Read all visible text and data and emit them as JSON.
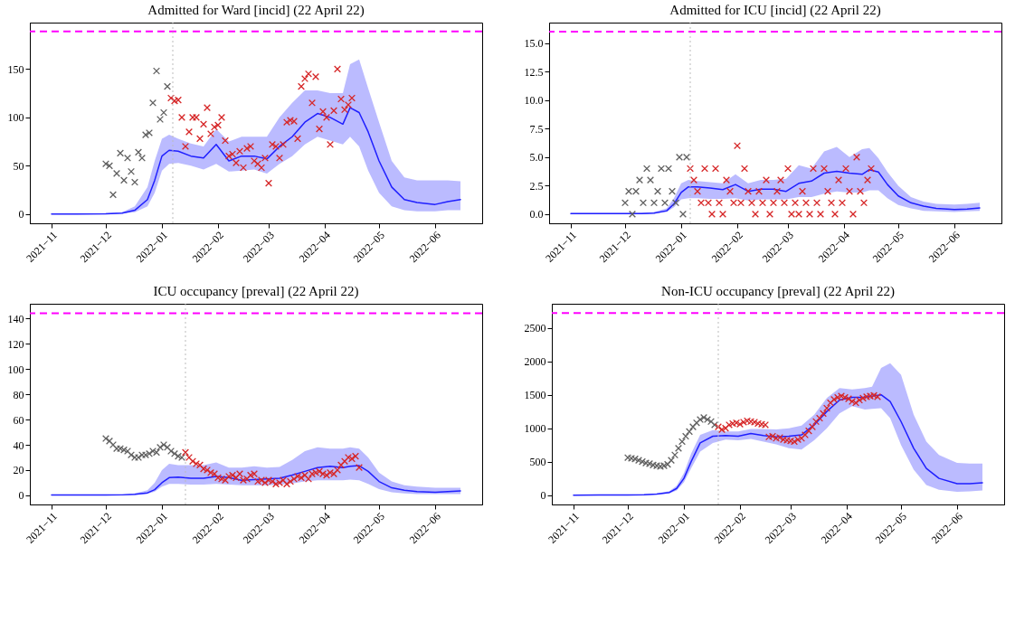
{
  "chart_data": [
    {
      "type": "scatter",
      "title": "Admitted for Ward [incid] (22 April 22)",
      "xlim": [
        "2021-10-20",
        "2022-06-27"
      ],
      "xticks": [
        {
          "value": "2021-11",
          "label": "2021−11"
        },
        {
          "value": "2021-12",
          "label": "2021−12"
        },
        {
          "value": "2022-01",
          "label": "2022−01"
        },
        {
          "value": "2022-02",
          "label": "2022−02"
        },
        {
          "value": "2022-03",
          "label": "2022−03"
        },
        {
          "value": "2022-04",
          "label": "2022−04"
        },
        {
          "value": "2022-05",
          "label": "2022−05"
        },
        {
          "value": "2022-06",
          "label": "2022−06"
        }
      ],
      "ylim": [
        -9.5,
        198
      ],
      "yticks": [
        0,
        50,
        100,
        150
      ],
      "ref_lines": [
        {
          "axis": "y",
          "value": 189,
          "color": "#ff00ff",
          "line_style": "dashed"
        },
        {
          "axis": "x",
          "value": "2022-01-07",
          "color": "#bbbbbb",
          "line_style": "dotted"
        }
      ],
      "series": [
        {
          "type": "scatter",
          "marker": "cross",
          "color": "#606060",
          "x": [
            "2021-12-01",
            "2021-12-03",
            "2021-12-05",
            "2021-12-07",
            "2021-12-09",
            "2021-12-11",
            "2021-12-13",
            "2021-12-15",
            "2021-12-17",
            "2021-12-19",
            "2021-12-21",
            "2021-12-23",
            "2021-12-25",
            "2021-12-27",
            "2021-12-29",
            "2021-12-31",
            "2022-01-02",
            "2022-01-04"
          ],
          "values": [
            52,
            50,
            20,
            42,
            63,
            35,
            58,
            44,
            33,
            64,
            58,
            82,
            84,
            115,
            148,
            98,
            105,
            132
          ]
        },
        {
          "type": "scatter",
          "marker": "cross",
          "color": "#d62728",
          "x": [
            "2022-01-06",
            "2022-01-08",
            "2022-01-10",
            "2022-01-12",
            "2022-01-14",
            "2022-01-16",
            "2022-01-18",
            "2022-01-20",
            "2022-01-22",
            "2022-01-24",
            "2022-01-26",
            "2022-01-28",
            "2022-01-30",
            "2022-02-01",
            "2022-02-03",
            "2022-02-05",
            "2022-02-07",
            "2022-02-09",
            "2022-02-11",
            "2022-02-13",
            "2022-02-15",
            "2022-02-17",
            "2022-02-19",
            "2022-02-21",
            "2022-02-23",
            "2022-02-25",
            "2022-02-27",
            "2022-03-01",
            "2022-03-03",
            "2022-03-05",
            "2022-03-07",
            "2022-03-09",
            "2022-03-11",
            "2022-03-13",
            "2022-03-15",
            "2022-03-17",
            "2022-03-19",
            "2022-03-21",
            "2022-03-23",
            "2022-03-25",
            "2022-03-27",
            "2022-03-29",
            "2022-03-31",
            "2022-04-02",
            "2022-04-04",
            "2022-04-06",
            "2022-04-08",
            "2022-04-10",
            "2022-04-12",
            "2022-04-14",
            "2022-04-16"
          ],
          "values": [
            120,
            117,
            118,
            100,
            70,
            85,
            100,
            100,
            78,
            93,
            110,
            83,
            90,
            92,
            100,
            76,
            60,
            62,
            53,
            65,
            48,
            68,
            70,
            55,
            52,
            48,
            58,
            32,
            72,
            70,
            58,
            72,
            95,
            97,
            96,
            78,
            132,
            140,
            145,
            115,
            142,
            88,
            106,
            100,
            72,
            107,
            150,
            119,
            108,
            113,
            120
          ]
        },
        {
          "type": "line",
          "color": "#1f1fff",
          "x": [
            "2021-11-01",
            "2021-11-15",
            "2021-12-01",
            "2021-12-10",
            "2021-12-17",
            "2021-12-24",
            "2021-12-28",
            "2022-01-01",
            "2022-01-05",
            "2022-01-10",
            "2022-01-17",
            "2022-01-24",
            "2022-01-31",
            "2022-02-07",
            "2022-02-14",
            "2022-02-21",
            "2022-02-28",
            "2022-03-07",
            "2022-03-14",
            "2022-03-21",
            "2022-03-28",
            "2022-04-04",
            "2022-04-11",
            "2022-04-15",
            "2022-04-20",
            "2022-04-25",
            "2022-05-01",
            "2022-05-08",
            "2022-05-15",
            "2022-05-22",
            "2022-06-01",
            "2022-06-08",
            "2022-06-15"
          ],
          "values": [
            0,
            0,
            0.3,
            1,
            4,
            15,
            35,
            60,
            66,
            65,
            60,
            58,
            72,
            55,
            60,
            60,
            57,
            70,
            80,
            95,
            104,
            100,
            93,
            110,
            105,
            85,
            55,
            28,
            15,
            12,
            10,
            13,
            15
          ],
          "lower": [
            0,
            0,
            0,
            0.5,
            2,
            8,
            22,
            45,
            52,
            53,
            50,
            46,
            52,
            44,
            45,
            46,
            42,
            52,
            60,
            72,
            80,
            76,
            72,
            80,
            70,
            45,
            22,
            8,
            4,
            3,
            3,
            4,
            4
          ],
          "upper": [
            0,
            0,
            1,
            2,
            8,
            28,
            55,
            78,
            82,
            78,
            73,
            70,
            88,
            75,
            80,
            80,
            80,
            100,
            115,
            128,
            128,
            125,
            125,
            155,
            160,
            130,
            95,
            55,
            38,
            35,
            35,
            35,
            34
          ]
        }
      ]
    },
    {
      "type": "scatter",
      "title": "Admitted for ICU [incid] (22 April 22)",
      "xlim": [
        "2021-10-20",
        "2022-06-27"
      ],
      "xticks": [
        {
          "value": "2021-11",
          "label": "2021−11"
        },
        {
          "value": "2021-12",
          "label": "2021−12"
        },
        {
          "value": "2022-01",
          "label": "2022−01"
        },
        {
          "value": "2022-02",
          "label": "2022−02"
        },
        {
          "value": "2022-03",
          "label": "2022−03"
        },
        {
          "value": "2022-04",
          "label": "2022−04"
        },
        {
          "value": "2022-05",
          "label": "2022−05"
        },
        {
          "value": "2022-06",
          "label": "2022−06"
        }
      ],
      "ylim": [
        -0.8,
        16.8
      ],
      "yticks": [
        {
          "value": 0,
          "label": "0.0"
        },
        2.5,
        {
          "value": 5,
          "label": "5.0"
        },
        7.5,
        {
          "value": 10,
          "label": "10.0"
        },
        12.5,
        {
          "value": 15,
          "label": "15.0"
        }
      ],
      "ref_lines": [
        {
          "axis": "y",
          "value": 16,
          "color": "#ff00ff",
          "line_style": "dashed"
        },
        {
          "axis": "x",
          "value": "2022-01-06",
          "color": "#bbbbbb",
          "line_style": "dotted"
        }
      ],
      "series": [
        {
          "type": "scatter",
          "marker": "cross",
          "color": "#606060",
          "x": [
            "2021-12-01",
            "2021-12-03",
            "2021-12-05",
            "2021-12-07",
            "2021-12-09",
            "2021-12-11",
            "2021-12-13",
            "2021-12-15",
            "2021-12-17",
            "2021-12-19",
            "2021-12-21",
            "2021-12-23",
            "2021-12-25",
            "2021-12-27",
            "2021-12-29",
            "2021-12-31",
            "2022-01-02",
            "2022-01-04"
          ],
          "values": [
            1,
            2,
            0,
            2,
            3,
            1,
            4,
            3,
            1,
            2,
            4,
            1,
            4,
            2,
            1,
            5,
            0,
            5
          ]
        },
        {
          "type": "scatter",
          "marker": "cross",
          "color": "#d62728",
          "x": [
            "2022-01-06",
            "2022-01-08",
            "2022-01-10",
            "2022-01-12",
            "2022-01-14",
            "2022-01-16",
            "2022-01-18",
            "2022-01-20",
            "2022-01-22",
            "2022-01-24",
            "2022-01-26",
            "2022-01-28",
            "2022-01-30",
            "2022-02-01",
            "2022-02-03",
            "2022-02-05",
            "2022-02-07",
            "2022-02-09",
            "2022-02-11",
            "2022-02-13",
            "2022-02-15",
            "2022-02-17",
            "2022-02-19",
            "2022-02-21",
            "2022-02-23",
            "2022-02-25",
            "2022-02-27",
            "2022-03-01",
            "2022-03-03",
            "2022-03-05",
            "2022-03-07",
            "2022-03-09",
            "2022-03-11",
            "2022-03-13",
            "2022-03-15",
            "2022-03-17",
            "2022-03-19",
            "2022-03-21",
            "2022-03-23",
            "2022-03-25",
            "2022-03-27",
            "2022-03-29",
            "2022-03-31",
            "2022-04-02",
            "2022-04-04",
            "2022-04-06",
            "2022-04-08",
            "2022-04-10",
            "2022-04-12",
            "2022-04-14",
            "2022-04-16"
          ],
          "values": [
            4,
            3,
            2,
            1,
            4,
            1,
            0,
            4,
            1,
            0,
            3,
            2,
            1,
            6,
            1,
            4,
            2,
            1,
            0,
            2,
            1,
            3,
            0,
            1,
            2,
            3,
            1,
            4,
            0,
            1,
            0,
            2,
            1,
            0,
            4,
            1,
            0,
            4,
            2,
            1,
            0,
            3,
            1,
            4,
            2,
            0,
            5,
            2,
            1,
            3,
            4
          ]
        },
        {
          "type": "line",
          "color": "#1f1fff",
          "x": [
            "2021-11-01",
            "2021-11-15",
            "2021-12-01",
            "2021-12-10",
            "2021-12-17",
            "2021-12-24",
            "2021-12-28",
            "2022-01-01",
            "2022-01-05",
            "2022-01-10",
            "2022-01-17",
            "2022-01-24",
            "2022-01-31",
            "2022-02-07",
            "2022-02-14",
            "2022-02-21",
            "2022-02-28",
            "2022-03-07",
            "2022-03-14",
            "2022-03-21",
            "2022-03-28",
            "2022-04-04",
            "2022-04-11",
            "2022-04-15",
            "2022-04-20",
            "2022-04-25",
            "2022-05-01",
            "2022-05-08",
            "2022-05-15",
            "2022-05-22",
            "2022-06-01",
            "2022-06-08",
            "2022-06-15"
          ],
          "values": [
            0.05,
            0.05,
            0.05,
            0.06,
            0.1,
            0.3,
            0.9,
            1.9,
            2.4,
            2.4,
            2.3,
            2.15,
            2.6,
            2.0,
            2.2,
            2.2,
            2.0,
            2.7,
            2.9,
            3.6,
            3.75,
            3.6,
            3.5,
            3.9,
            3.7,
            2.6,
            1.6,
            1.0,
            0.7,
            0.5,
            0.4,
            0.45,
            0.55
          ],
          "lower": [
            0,
            0,
            0,
            0,
            0.05,
            0.2,
            0.6,
            1.3,
            1.4,
            1.4,
            1.35,
            1.35,
            1.4,
            1.2,
            1.3,
            1.3,
            1.3,
            1.5,
            1.5,
            1.8,
            2.0,
            1.9,
            1.9,
            2.1,
            2.1,
            1.4,
            0.8,
            0.5,
            0.3,
            0.25,
            0.2,
            0.25,
            0.3
          ],
          "upper": [
            0.1,
            0.1,
            0.1,
            0.12,
            0.2,
            0.5,
            1.4,
            2.7,
            3.0,
            2.9,
            2.8,
            2.7,
            3.5,
            2.7,
            3.0,
            3.0,
            3.1,
            4.3,
            4.0,
            5.5,
            5.9,
            5.0,
            5.7,
            5.8,
            4.9,
            3.7,
            2.5,
            1.5,
            1.1,
            0.9,
            0.85,
            0.9,
            1.0
          ]
        }
      ]
    },
    {
      "type": "scatter",
      "title": "ICU occupancy [preval] (22 April 22)",
      "xlim": [
        "2021-10-20",
        "2022-06-27"
      ],
      "xticks": [
        {
          "value": "2021-11",
          "label": "2021−11"
        },
        {
          "value": "2021-12",
          "label": "2021−12"
        },
        {
          "value": "2022-01",
          "label": "2022−01"
        },
        {
          "value": "2022-02",
          "label": "2022−02"
        },
        {
          "value": "2022-03",
          "label": "2022−03"
        },
        {
          "value": "2022-04",
          "label": "2022−04"
        },
        {
          "value": "2022-05",
          "label": "2022−05"
        },
        {
          "value": "2022-06",
          "label": "2022−06"
        }
      ],
      "ylim": [
        -7.2,
        151.6
      ],
      "yticks": [
        0,
        20,
        40,
        60,
        80,
        100,
        120,
        140
      ],
      "ref_lines": [
        {
          "axis": "y",
          "value": 144,
          "color": "#ff00ff",
          "line_style": "dashed"
        },
        {
          "axis": "x",
          "value": "2022-01-14",
          "color": "#bbbbbb",
          "line_style": "dotted"
        }
      ],
      "series": [
        {
          "type": "scatter",
          "marker": "cross",
          "color": "#606060",
          "x": [
            "2021-12-01",
            "2021-12-03",
            "2021-12-05",
            "2021-12-07",
            "2021-12-09",
            "2021-12-11",
            "2021-12-13",
            "2021-12-15",
            "2021-12-17",
            "2021-12-19",
            "2021-12-21",
            "2021-12-23",
            "2021-12-25",
            "2021-12-27",
            "2021-12-29",
            "2021-12-31",
            "2022-01-02",
            "2022-01-04",
            "2022-01-06",
            "2022-01-08",
            "2022-01-10",
            "2022-01-12"
          ],
          "values": [
            45,
            43,
            40,
            37,
            37,
            36,
            35,
            32,
            30,
            30,
            32,
            32,
            33,
            35,
            34,
            38,
            40,
            38,
            35,
            33,
            31,
            30
          ]
        },
        {
          "type": "scatter",
          "marker": "cross",
          "color": "#d62728",
          "x": [
            "2022-01-14",
            "2022-01-16",
            "2022-01-18",
            "2022-01-20",
            "2022-01-22",
            "2022-01-24",
            "2022-01-26",
            "2022-01-28",
            "2022-01-30",
            "2022-02-01",
            "2022-02-03",
            "2022-02-05",
            "2022-02-07",
            "2022-02-09",
            "2022-02-11",
            "2022-02-13",
            "2022-02-15",
            "2022-02-17",
            "2022-02-19",
            "2022-02-21",
            "2022-02-23",
            "2022-02-25",
            "2022-02-27",
            "2022-03-01",
            "2022-03-03",
            "2022-03-05",
            "2022-03-07",
            "2022-03-09",
            "2022-03-11",
            "2022-03-13",
            "2022-03-15",
            "2022-03-17",
            "2022-03-19",
            "2022-03-21",
            "2022-03-23",
            "2022-03-25",
            "2022-03-27",
            "2022-03-29",
            "2022-03-31",
            "2022-04-02",
            "2022-04-04",
            "2022-04-06",
            "2022-04-08",
            "2022-04-10",
            "2022-04-12",
            "2022-04-14",
            "2022-04-16",
            "2022-04-18",
            "2022-04-20"
          ],
          "values": [
            34,
            30,
            27,
            25,
            24,
            21,
            20,
            18,
            17,
            14,
            13,
            12,
            15,
            16,
            14,
            17,
            12,
            13,
            16,
            17,
            11,
            12,
            10,
            12,
            11,
            9,
            10,
            12,
            9,
            11,
            13,
            15,
            14,
            16,
            13,
            17,
            18,
            19,
            17,
            16,
            18,
            17,
            20,
            24,
            27,
            30,
            29,
            31,
            22
          ]
        },
        {
          "type": "line",
          "color": "#1f1fff",
          "x": [
            "2021-11-01",
            "2021-11-15",
            "2021-12-01",
            "2021-12-10",
            "2021-12-17",
            "2021-12-24",
            "2021-12-28",
            "2022-01-01",
            "2022-01-05",
            "2022-01-10",
            "2022-01-17",
            "2022-01-24",
            "2022-01-31",
            "2022-02-07",
            "2022-02-14",
            "2022-02-21",
            "2022-02-28",
            "2022-03-07",
            "2022-03-14",
            "2022-03-21",
            "2022-03-28",
            "2022-04-04",
            "2022-04-11",
            "2022-04-15",
            "2022-04-20",
            "2022-04-25",
            "2022-05-01",
            "2022-05-08",
            "2022-05-15",
            "2022-05-22",
            "2022-06-01",
            "2022-06-08",
            "2022-06-15"
          ],
          "values": [
            0.3,
            0.3,
            0.3,
            0.4,
            0.8,
            2,
            4.5,
            10,
            14,
            14.5,
            13.5,
            13.5,
            15,
            14,
            12,
            12.5,
            13,
            13.5,
            16,
            19,
            22,
            23,
            22,
            23,
            23.5,
            19,
            11,
            6,
            4,
            3,
            2.5,
            3,
            3.5
          ],
          "lower": [
            0,
            0,
            0,
            0.1,
            0.4,
            1.2,
            3,
            7,
            9,
            9,
            8.5,
            8.5,
            9,
            8.5,
            8,
            8,
            8,
            8.5,
            9.5,
            11,
            12,
            12,
            12,
            12.5,
            12,
            9,
            5,
            2.5,
            1.5,
            1,
            1,
            1,
            1
          ],
          "upper": [
            0.5,
            0.5,
            0.5,
            0.7,
            1.5,
            4,
            10,
            20,
            25,
            24,
            24,
            24,
            26,
            22,
            22,
            23,
            22,
            22.5,
            28,
            35,
            38,
            37,
            37,
            38,
            37,
            30,
            18,
            11,
            8,
            7,
            6,
            6,
            6
          ]
        }
      ]
    },
    {
      "type": "scatter",
      "title": "Non-ICU occupancy [preval] (22 April 22)",
      "xlim": [
        "2021-10-20",
        "2022-06-27"
      ],
      "xticks": [
        {
          "value": "2021-11",
          "label": "2021−11"
        },
        {
          "value": "2021-12",
          "label": "2021−12"
        },
        {
          "value": "2022-01",
          "label": "2022−01"
        },
        {
          "value": "2022-02",
          "label": "2022−02"
        },
        {
          "value": "2022-03",
          "label": "2022−03"
        },
        {
          "value": "2022-04",
          "label": "2022−04"
        },
        {
          "value": "2022-05",
          "label": "2022−05"
        },
        {
          "value": "2022-06",
          "label": "2022−06"
        }
      ],
      "ylim": [
        -140,
        2860
      ],
      "yticks": [
        0,
        500,
        1000,
        1500,
        2000,
        2500
      ],
      "ref_lines": [
        {
          "axis": "y",
          "value": 2720,
          "color": "#ff00ff",
          "line_style": "dashed"
        },
        {
          "axis": "x",
          "value": "2022-01-20",
          "color": "#bbbbbb",
          "line_style": "dotted"
        }
      ],
      "series": [
        {
          "type": "scatter",
          "marker": "cross",
          "color": "#606060",
          "x": [
            "2021-12-01",
            "2021-12-03",
            "2021-12-05",
            "2021-12-07",
            "2021-12-09",
            "2021-12-11",
            "2021-12-13",
            "2021-12-15",
            "2021-12-17",
            "2021-12-19",
            "2021-12-21",
            "2021-12-23",
            "2021-12-25",
            "2021-12-27",
            "2021-12-29",
            "2021-12-31",
            "2022-01-02",
            "2022-01-04",
            "2022-01-06",
            "2022-01-08",
            "2022-01-10",
            "2022-01-12",
            "2022-01-14",
            "2022-01-16",
            "2022-01-18"
          ],
          "values": [
            560,
            550,
            540,
            520,
            500,
            480,
            470,
            450,
            440,
            430,
            440,
            460,
            520,
            600,
            700,
            800,
            880,
            950,
            1020,
            1080,
            1130,
            1160,
            1130,
            1100,
            1050
          ]
        },
        {
          "type": "scatter",
          "marker": "cross",
          "color": "#d62728",
          "x": [
            "2022-01-20",
            "2022-01-22",
            "2022-01-24",
            "2022-01-26",
            "2022-01-28",
            "2022-01-30",
            "2022-02-01",
            "2022-02-03",
            "2022-02-05",
            "2022-02-07",
            "2022-02-09",
            "2022-02-11",
            "2022-02-13",
            "2022-02-15",
            "2022-02-17",
            "2022-02-19",
            "2022-02-21",
            "2022-02-23",
            "2022-02-25",
            "2022-02-27",
            "2022-03-01",
            "2022-03-03",
            "2022-03-05",
            "2022-03-07",
            "2022-03-09",
            "2022-03-11",
            "2022-03-13",
            "2022-03-15",
            "2022-03-17",
            "2022-03-19",
            "2022-03-21",
            "2022-03-23",
            "2022-03-25",
            "2022-03-27",
            "2022-03-29",
            "2022-03-31",
            "2022-04-02",
            "2022-04-04",
            "2022-04-06",
            "2022-04-08",
            "2022-04-10",
            "2022-04-12",
            "2022-04-14",
            "2022-04-16",
            "2022-04-18"
          ],
          "values": [
            1020,
            980,
            1000,
            1050,
            1070,
            1080,
            1060,
            1090,
            1110,
            1100,
            1090,
            1070,
            1060,
            1050,
            870,
            880,
            850,
            860,
            830,
            820,
            810,
            800,
            830,
            850,
            900,
            960,
            1020,
            1100,
            1150,
            1220,
            1300,
            1380,
            1430,
            1460,
            1480,
            1460,
            1440,
            1400,
            1380,
            1420,
            1450,
            1470,
            1480,
            1490,
            1470
          ]
        },
        {
          "type": "line",
          "color": "#1f1fff",
          "x": [
            "2021-11-01",
            "2021-11-15",
            "2021-12-01",
            "2021-12-10",
            "2021-12-17",
            "2021-12-24",
            "2021-12-28",
            "2022-01-01",
            "2022-01-05",
            "2022-01-10",
            "2022-01-17",
            "2022-01-24",
            "2022-01-31",
            "2022-02-07",
            "2022-02-14",
            "2022-02-21",
            "2022-02-28",
            "2022-03-07",
            "2022-03-14",
            "2022-03-21",
            "2022-03-28",
            "2022-04-04",
            "2022-04-11",
            "2022-04-15",
            "2022-04-20",
            "2022-04-25",
            "2022-05-01",
            "2022-05-08",
            "2022-05-15",
            "2022-05-22",
            "2022-06-01",
            "2022-06-08",
            "2022-06-15"
          ],
          "values": [
            0,
            2,
            3,
            6,
            15,
            40,
            100,
            250,
            500,
            780,
            880,
            890,
            880,
            920,
            890,
            870,
            880,
            900,
            1050,
            1250,
            1420,
            1460,
            1460,
            1480,
            1500,
            1400,
            1100,
            700,
            400,
            250,
            170,
            170,
            185
          ],
          "lower": [
            0,
            0,
            1,
            3,
            8,
            25,
            70,
            190,
            400,
            650,
            780,
            830,
            820,
            840,
            800,
            760,
            700,
            680,
            820,
            1000,
            1220,
            1330,
            1280,
            1290,
            1300,
            1150,
            750,
            380,
            150,
            80,
            50,
            55,
            70
          ],
          "upper": [
            0,
            5,
            8,
            12,
            25,
            60,
            140,
            330,
            620,
            900,
            970,
            950,
            950,
            990,
            990,
            980,
            1000,
            1040,
            1200,
            1450,
            1600,
            1580,
            1600,
            1620,
            1900,
            1970,
            1800,
            1200,
            800,
            600,
            480,
            470,
            470
          ]
        }
      ]
    }
  ]
}
